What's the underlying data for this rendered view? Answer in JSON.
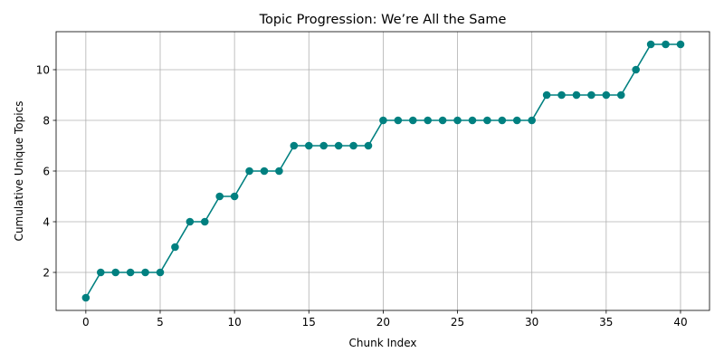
{
  "chart_data": {
    "type": "line",
    "title": "Topic Progression: We’re All the Same",
    "xlabel": "Chunk Index",
    "ylabel": "Cumulative Unique Topics",
    "xlim": [
      -2,
      41.95
    ],
    "ylim": [
      0.5,
      11.5
    ],
    "xticks": [
      0,
      5,
      10,
      15,
      20,
      25,
      30,
      35,
      40
    ],
    "yticks": [
      2,
      4,
      6,
      8,
      10
    ],
    "grid": true,
    "series": [
      {
        "color": "#008080",
        "marker": "circle",
        "x": [
          0,
          1,
          2,
          3,
          4,
          5,
          6,
          7,
          8,
          9,
          10,
          11,
          12,
          13,
          14,
          15,
          16,
          17,
          18,
          19,
          20,
          21,
          22,
          23,
          24,
          25,
          26,
          27,
          28,
          29,
          30,
          31,
          32,
          33,
          34,
          35,
          36,
          37,
          38,
          39,
          40
        ],
        "y": [
          1,
          2,
          2,
          2,
          2,
          2,
          3,
          4,
          4,
          5,
          5,
          6,
          6,
          6,
          7,
          7,
          7,
          7,
          7,
          7,
          8,
          8,
          8,
          8,
          8,
          8,
          8,
          8,
          8,
          8,
          8,
          9,
          9,
          9,
          9,
          9,
          9,
          10,
          11,
          11,
          11
        ]
      }
    ]
  }
}
